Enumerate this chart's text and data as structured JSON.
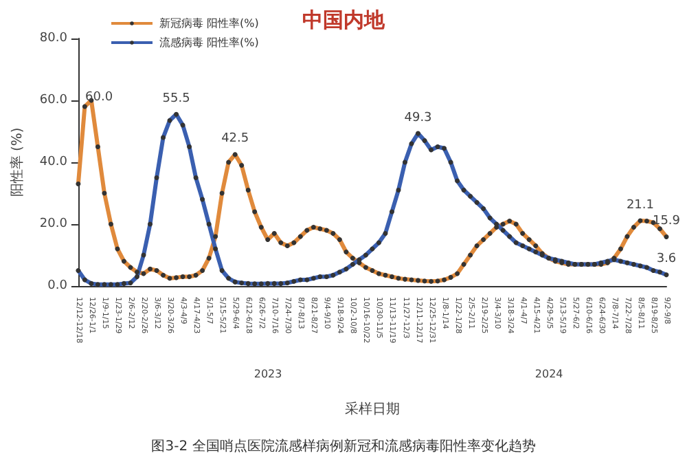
{
  "chart_data": {
    "type": "line",
    "title": "中国内地",
    "xlabel": "采样日期",
    "ylabel": "阳性率 (%)",
    "categories": [
      "12/12-12/18",
      null,
      "12/26-1/1",
      null,
      "1/9-1/15",
      null,
      "1/23-1/29",
      null,
      "2/6-2/12",
      null,
      "2/20-2/26",
      null,
      "3/6-3/12",
      null,
      "3/20-3/26",
      null,
      "4/3-4/9",
      null,
      "4/17-4/23",
      null,
      "5/1-5/7",
      null,
      "5/15-5/21",
      null,
      "5/29-6/4",
      null,
      "6/12-6/18",
      null,
      "6/26-7/2",
      null,
      "7/10-7/16",
      null,
      "7/24-7/30",
      null,
      "8/7-8/13",
      null,
      "8/21-8/27",
      null,
      "9/4-9/10",
      null,
      "9/18-9/24",
      null,
      "10/2-10/8",
      null,
      "10/16-10/22",
      null,
      "10/30-11/5",
      null,
      "11/13-11/19",
      null,
      "11/27-12/3",
      null,
      "12/11-12/17",
      null,
      "12/25-12/31",
      null,
      "1/8-1/14",
      null,
      "1/22-1/28",
      null,
      "2/5-2/11",
      null,
      "2/19-2/25",
      null,
      "3/4-3/10",
      null,
      "3/18-3/24",
      null,
      "4/1-4/7",
      null,
      "4/15-4/21",
      null,
      "4/29-5/5",
      null,
      "5/13-5/19",
      null,
      "5/27-6/2",
      null,
      "6/10-6/16",
      null,
      "6/24-6/30",
      null,
      "7/8-7/14",
      null,
      "7/22-7/28",
      null,
      "8/5-8/11",
      null,
      "8/19-8/25",
      null,
      "9/2-9/8"
    ],
    "series": [
      {
        "name": "新冠病毒 阳性率(%)",
        "color": "#e08a3c",
        "values": [
          33,
          58,
          60,
          45,
          30,
          20,
          12,
          8,
          6,
          4.5,
          4,
          5.5,
          5,
          3.5,
          2.5,
          2.7,
          3,
          3,
          3.5,
          5,
          9,
          16,
          30,
          40,
          42.5,
          39,
          31,
          24,
          19,
          15,
          17,
          14,
          13,
          14,
          16,
          18,
          19,
          18.5,
          18,
          17,
          15,
          11,
          9,
          7.5,
          6,
          5,
          4,
          3.5,
          3,
          2.5,
          2.2,
          2,
          1.8,
          1.6,
          1.5,
          1.6,
          2,
          2.8,
          4,
          7,
          10,
          13,
          15,
          17,
          19,
          20,
          21,
          20,
          17,
          15,
          13,
          10.5,
          9,
          8,
          7.5,
          7,
          7,
          7,
          7,
          7,
          7,
          7.5,
          9,
          12,
          16,
          19,
          21.1,
          21,
          20.5,
          18.5,
          15.9
        ],
        "value_labels": [
          null,
          null,
          "60.0",
          null,
          null,
          null,
          null,
          null,
          null,
          null,
          null,
          null,
          null,
          null,
          null,
          null,
          null,
          null,
          null,
          null,
          null,
          null,
          null,
          null,
          "42.5",
          null,
          null,
          null,
          null,
          null,
          null,
          null,
          null,
          null,
          null,
          null,
          null,
          null,
          null,
          null,
          null,
          null,
          null,
          null,
          null,
          null,
          null,
          null,
          null,
          null,
          null,
          null,
          null,
          null,
          null,
          null,
          null,
          null,
          null,
          null,
          null,
          null,
          null,
          null,
          null,
          null,
          null,
          null,
          null,
          null,
          null,
          null,
          null,
          null,
          null,
          null,
          null,
          null,
          null,
          null,
          null,
          null,
          null,
          null,
          null,
          null,
          "21.1",
          null,
          null,
          null,
          "15.9"
        ]
      },
      {
        "name": "流感病毒 阳性率(%)",
        "color": "#3a5fb0",
        "values": [
          5,
          2,
          0.8,
          0.5,
          0.5,
          0.5,
          0.5,
          0.8,
          1,
          3,
          10,
          20,
          35,
          48,
          53.5,
          55.5,
          52,
          45,
          35,
          28,
          20,
          12,
          5,
          2.5,
          1.3,
          1,
          0.8,
          0.7,
          0.7,
          0.8,
          0.8,
          0.8,
          1,
          1.5,
          2,
          2,
          2.5,
          3,
          3,
          3.5,
          4.5,
          5.5,
          7,
          8.5,
          10,
          12,
          14,
          17,
          24,
          31,
          40,
          46,
          49.3,
          47,
          44,
          45,
          44.5,
          40,
          34,
          31,
          29,
          27,
          25,
          22,
          20,
          18,
          16,
          14,
          13,
          12,
          11,
          10,
          9,
          8.5,
          8,
          7.5,
          7,
          7,
          7,
          7,
          7.5,
          8,
          8.5,
          8,
          7.5,
          7,
          6.5,
          6,
          5,
          4.5,
          3.6
        ],
        "value_labels": [
          null,
          null,
          null,
          null,
          null,
          null,
          null,
          null,
          null,
          null,
          null,
          null,
          null,
          null,
          null,
          "55.5",
          null,
          null,
          null,
          null,
          null,
          null,
          null,
          null,
          null,
          null,
          null,
          null,
          null,
          null,
          null,
          null,
          null,
          null,
          null,
          null,
          null,
          null,
          null,
          null,
          null,
          null,
          null,
          null,
          null,
          null,
          null,
          null,
          null,
          null,
          null,
          null,
          "49.3",
          null,
          null,
          null,
          null,
          null,
          null,
          null,
          null,
          null,
          null,
          null,
          null,
          null,
          null,
          null,
          null,
          null,
          null,
          null,
          null,
          null,
          null,
          null,
          null,
          null,
          null,
          null,
          null,
          null,
          null,
          null,
          null,
          null,
          null,
          null,
          null,
          null,
          "3.6"
        ]
      }
    ],
    "ylim": [
      0,
      80
    ],
    "yticks": [
      {
        "value": 0,
        "label": "0.0"
      },
      {
        "value": 20,
        "label": "20.0"
      },
      {
        "value": 40,
        "label": "40.0"
      },
      {
        "value": 60,
        "label": "60.0"
      },
      {
        "value": 80,
        "label": "80.0"
      }
    ],
    "grid": false,
    "legend": "top left",
    "marker": "circle",
    "annotations": [
      "2023",
      "2024",
      "图3-2 全国哨点医院流感样病例新冠和流感病毒阳性率变化趋势"
    ]
  }
}
